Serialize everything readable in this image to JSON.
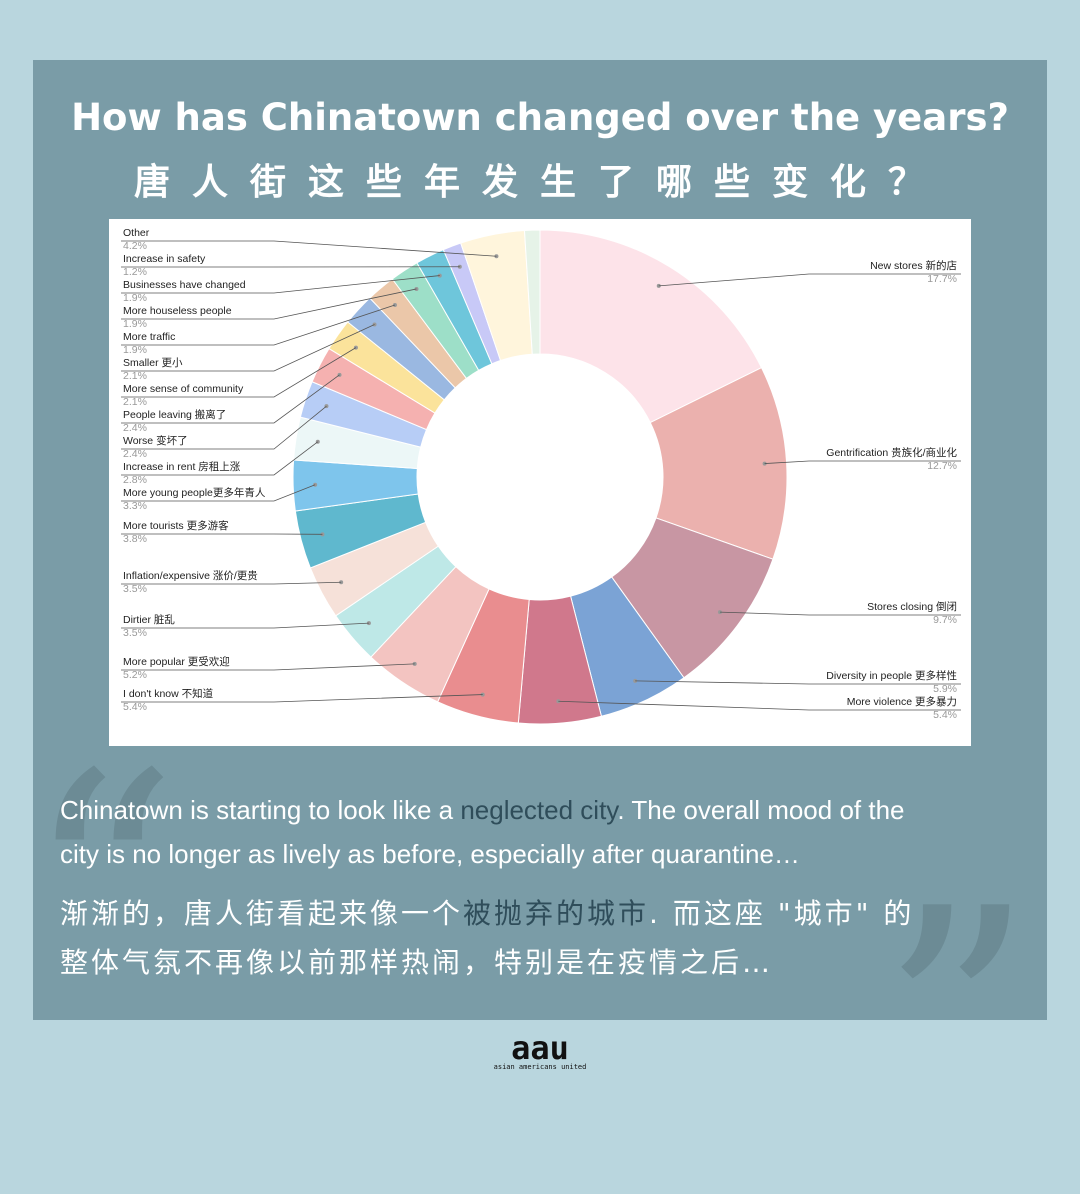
{
  "title_en": "How has Chinatown changed over the years?",
  "title_zh": "唐人街这些年发生了哪些变化？",
  "quote": {
    "en_line1_a": "Chinatown is starting to look like a ",
    "en_line1_highlight": "neglected city",
    "en_line1_b": ". The overall mood of the",
    "en_line2": "city is no longer as lively as before, especially after quarantine…",
    "zh_line1_a": "渐渐的，唐人街看起来像一个",
    "zh_line1_highlight": "被抛弃的城市",
    "zh_line1_b": ". 而这座 \"城市\" 的",
    "zh_line2": "整体气氛不再像以前那样热闹，特别是在疫情之后…"
  },
  "logo": {
    "mark": "aau",
    "sub": "asian americans united"
  },
  "colors": {
    "background": "#b9d6de",
    "panel": "#7a9ca7",
    "highlight": "#2f4d5a"
  },
  "chart_data": {
    "type": "pie",
    "donut": true,
    "series": [
      {
        "label": "New stores 新的店",
        "value": 17.7,
        "pct": "17.7%",
        "color": "#fde3e9",
        "side": "right"
      },
      {
        "label": "Gentrification 贵族化/商业化",
        "value": 12.7,
        "pct": "12.7%",
        "color": "#ebb1ae",
        "side": "right"
      },
      {
        "label": "Stores closing 倒闭",
        "value": 9.7,
        "pct": "9.7%",
        "color": "#c896a3",
        "side": "right"
      },
      {
        "label": "Diversity in people 更多样性",
        "value": 5.9,
        "pct": "5.9%",
        "color": "#7ba3d5",
        "side": "right"
      },
      {
        "label": "More violence 更多暴力",
        "value": 5.4,
        "pct": "5.4%",
        "color": "#d0788c",
        "side": "right"
      },
      {
        "label": "I don't know 不知道",
        "value": 5.4,
        "pct": "5.4%",
        "color": "#e98d8f",
        "side": "left"
      },
      {
        "label": "More popular 更受欢迎",
        "value": 5.2,
        "pct": "5.2%",
        "color": "#f3c4c1",
        "side": "left"
      },
      {
        "label": "Dirtier 脏乱",
        "value": 3.5,
        "pct": "3.5%",
        "color": "#bee8e7",
        "side": "left"
      },
      {
        "label": "Inflation/expensive 涨价/更贵",
        "value": 3.5,
        "pct": "3.5%",
        "color": "#f6e1d9",
        "side": "left"
      },
      {
        "label": "More tourists 更多游客",
        "value": 3.8,
        "pct": "3.8%",
        "color": "#5fb8ce",
        "side": "left"
      },
      {
        "label": "More young people更多年青人",
        "value": 3.3,
        "pct": "3.3%",
        "color": "#7ec5ec",
        "side": "left"
      },
      {
        "label": "Increase in rent 房租上涨",
        "value": 2.8,
        "pct": "2.8%",
        "color": "#ecf7f7",
        "side": "left"
      },
      {
        "label": "Worse 变坏了",
        "value": 2.4,
        "pct": "2.4%",
        "color": "#b7cdf6",
        "side": "left"
      },
      {
        "label": "People leaving 搬离了",
        "value": 2.4,
        "pct": "2.4%",
        "color": "#f5b1b0",
        "side": "left"
      },
      {
        "label": "More sense of community",
        "value": 2.1,
        "pct": "2.1%",
        "color": "#fbe39b",
        "side": "left"
      },
      {
        "label": "Smaller 更小",
        "value": 2.1,
        "pct": "2.1%",
        "color": "#9ab8e1",
        "side": "left"
      },
      {
        "label": "More traffic",
        "value": 1.9,
        "pct": "1.9%",
        "color": "#ebc7a9",
        "side": "left"
      },
      {
        "label": "More houseless people",
        "value": 1.9,
        "pct": "1.9%",
        "color": "#9ddfc8",
        "side": "left"
      },
      {
        "label": "Businesses have changed",
        "value": 1.9,
        "pct": "1.9%",
        "color": "#6ec6db",
        "side": "left"
      },
      {
        "label": "Increase in safety",
        "value": 1.2,
        "pct": "1.2%",
        "color": "#c8c9f7",
        "side": "left"
      },
      {
        "label": "Other",
        "value": 4.2,
        "pct": "4.2%",
        "color": "#fff5dc",
        "side": "left"
      }
    ],
    "extra_slice": {
      "color": "#e6f3e8"
    },
    "legend": "callouts"
  }
}
